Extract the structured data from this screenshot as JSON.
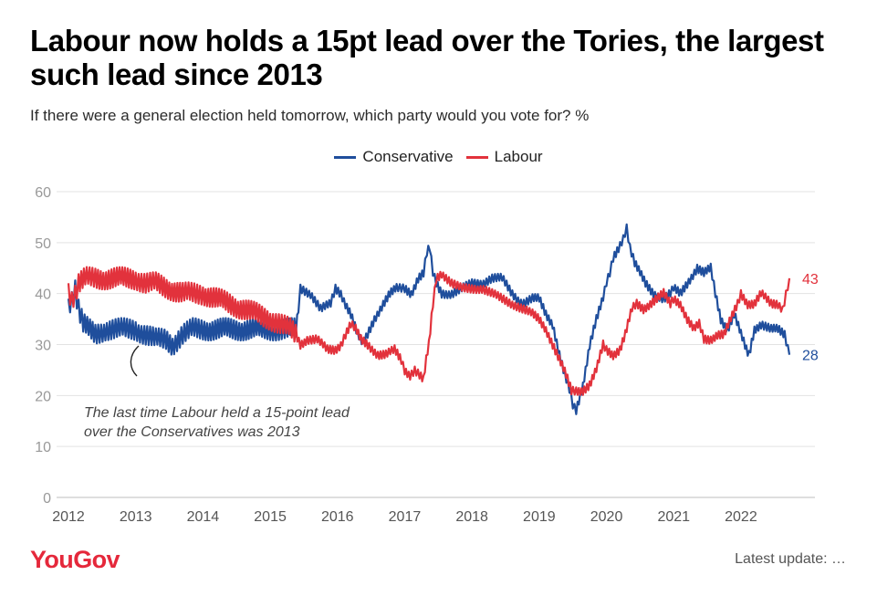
{
  "header": {
    "title": "Labour now holds a 15pt lead over the Tories, the largest such lead since 2013",
    "subtitle": "If there were a general election held tomorrow, which party would you vote for? %"
  },
  "legend": {
    "conservative_label": "Conservative",
    "labour_label": "Labour"
  },
  "colors": {
    "conservative": "#1f4e9c",
    "labour": "#e2323c",
    "grid": "#e3e3e3",
    "tick_text": "#999999"
  },
  "chart_data": {
    "type": "line",
    "title": "Labour now holds a 15pt lead over the Tories, the largest such lead since 2013",
    "subtitle": "If there were a general election held tomorrow, which party would you vote for? %",
    "xlabel": "",
    "ylabel": "",
    "x_ticks": [
      "2012",
      "2013",
      "2014",
      "2015",
      "2016",
      "2017",
      "2018",
      "2019",
      "2020",
      "2021",
      "2022"
    ],
    "y_ticks": [
      "0",
      "10",
      "20",
      "30",
      "40",
      "50",
      "60"
    ],
    "xlim": [
      2012,
      2023.1
    ],
    "ylim": [
      0,
      60
    ],
    "grid": true,
    "legend_position": "top-center",
    "series": [
      {
        "name": "Conservative",
        "color": "#1f4e9c",
        "end_label": "28",
        "points": [
          [
            2012.0,
            38
          ],
          [
            2012.05,
            39
          ],
          [
            2012.1,
            41
          ],
          [
            2012.15,
            37
          ],
          [
            2012.22,
            34
          ],
          [
            2012.3,
            33
          ],
          [
            2012.4,
            32
          ],
          [
            2012.55,
            33
          ],
          [
            2012.7,
            33
          ],
          [
            2012.85,
            33
          ],
          [
            2013.0,
            33
          ],
          [
            2013.15,
            32
          ],
          [
            2013.3,
            31
          ],
          [
            2013.45,
            31
          ],
          [
            2013.55,
            30
          ],
          [
            2013.7,
            32
          ],
          [
            2013.85,
            33
          ],
          [
            2014.0,
            33
          ],
          [
            2014.2,
            33
          ],
          [
            2014.4,
            33
          ],
          [
            2014.6,
            33
          ],
          [
            2014.8,
            33
          ],
          [
            2015.0,
            33
          ],
          [
            2015.15,
            33
          ],
          [
            2015.3,
            33
          ],
          [
            2015.38,
            33
          ],
          [
            2015.42,
            37
          ],
          [
            2015.45,
            41
          ],
          [
            2015.6,
            40
          ],
          [
            2015.75,
            37
          ],
          [
            2015.9,
            38
          ],
          [
            2015.97,
            41
          ],
          [
            2016.05,
            40
          ],
          [
            2016.12,
            38
          ],
          [
            2016.2,
            36
          ],
          [
            2016.3,
            32
          ],
          [
            2016.38,
            30
          ],
          [
            2016.45,
            32
          ],
          [
            2016.55,
            35
          ],
          [
            2016.68,
            38
          ],
          [
            2016.78,
            40
          ],
          [
            2016.88,
            41
          ],
          [
            2016.95,
            41
          ],
          [
            2017.0,
            41
          ],
          [
            2017.1,
            40
          ],
          [
            2017.2,
            43
          ],
          [
            2017.28,
            44
          ],
          [
            2017.33,
            48
          ],
          [
            2017.37,
            49
          ],
          [
            2017.42,
            44
          ],
          [
            2017.47,
            42
          ],
          [
            2017.55,
            40
          ],
          [
            2017.7,
            40
          ],
          [
            2017.85,
            41
          ],
          [
            2018.0,
            42
          ],
          [
            2018.15,
            42
          ],
          [
            2018.3,
            43
          ],
          [
            2018.45,
            43
          ],
          [
            2018.6,
            40
          ],
          [
            2018.75,
            38
          ],
          [
            2018.9,
            39
          ],
          [
            2019.0,
            39
          ],
          [
            2019.1,
            36
          ],
          [
            2019.2,
            34
          ],
          [
            2019.3,
            28
          ],
          [
            2019.38,
            24
          ],
          [
            2019.45,
            21
          ],
          [
            2019.5,
            18
          ],
          [
            2019.55,
            17
          ],
          [
            2019.65,
            22
          ],
          [
            2019.75,
            30
          ],
          [
            2019.85,
            35
          ],
          [
            2019.95,
            39
          ],
          [
            2020.0,
            42
          ],
          [
            2020.05,
            44
          ],
          [
            2020.1,
            47
          ],
          [
            2020.18,
            49
          ],
          [
            2020.25,
            51
          ],
          [
            2020.3,
            53
          ],
          [
            2020.35,
            49
          ],
          [
            2020.42,
            46
          ],
          [
            2020.5,
            44
          ],
          [
            2020.58,
            42
          ],
          [
            2020.7,
            40
          ],
          [
            2020.85,
            39
          ],
          [
            2020.95,
            40
          ],
          [
            2021.0,
            41
          ],
          [
            2021.1,
            40
          ],
          [
            2021.2,
            42
          ],
          [
            2021.35,
            45
          ],
          [
            2021.45,
            44
          ],
          [
            2021.55,
            45
          ],
          [
            2021.62,
            40
          ],
          [
            2021.7,
            35
          ],
          [
            2021.8,
            33
          ],
          [
            2021.9,
            36
          ],
          [
            2022.0,
            32
          ],
          [
            2022.08,
            29
          ],
          [
            2022.12,
            28
          ],
          [
            2022.2,
            33
          ],
          [
            2022.3,
            34
          ],
          [
            2022.45,
            33
          ],
          [
            2022.55,
            33
          ],
          [
            2022.65,
            32
          ],
          [
            2022.72,
            28
          ]
        ]
      },
      {
        "name": "Labour",
        "color": "#e2323c",
        "end_label": "43",
        "points": [
          [
            2012.0,
            41
          ],
          [
            2012.05,
            39
          ],
          [
            2012.1,
            40
          ],
          [
            2012.15,
            42
          ],
          [
            2012.25,
            43
          ],
          [
            2012.4,
            43
          ],
          [
            2012.6,
            43
          ],
          [
            2012.8,
            43
          ],
          [
            2013.0,
            43
          ],
          [
            2013.15,
            42
          ],
          [
            2013.3,
            42
          ],
          [
            2013.5,
            41
          ],
          [
            2013.7,
            40
          ],
          [
            2013.85,
            40
          ],
          [
            2014.0,
            40
          ],
          [
            2014.2,
            39
          ],
          [
            2014.4,
            38
          ],
          [
            2014.6,
            37
          ],
          [
            2014.8,
            36
          ],
          [
            2015.0,
            35
          ],
          [
            2015.15,
            34
          ],
          [
            2015.3,
            33
          ],
          [
            2015.38,
            32
          ],
          [
            2015.45,
            30
          ],
          [
            2015.55,
            31
          ],
          [
            2015.7,
            31
          ],
          [
            2015.85,
            29
          ],
          [
            2015.97,
            29
          ],
          [
            2016.05,
            30
          ],
          [
            2016.12,
            32
          ],
          [
            2016.2,
            34
          ],
          [
            2016.27,
            33
          ],
          [
            2016.35,
            31
          ],
          [
            2016.45,
            30
          ],
          [
            2016.6,
            28
          ],
          [
            2016.72,
            28
          ],
          [
            2016.85,
            29
          ],
          [
            2016.95,
            27
          ],
          [
            2017.0,
            25
          ],
          [
            2017.08,
            24
          ],
          [
            2017.15,
            25
          ],
          [
            2017.22,
            24
          ],
          [
            2017.28,
            23
          ],
          [
            2017.32,
            27
          ],
          [
            2017.36,
            30
          ],
          [
            2017.42,
            38
          ],
          [
            2017.47,
            43
          ],
          [
            2017.55,
            44
          ],
          [
            2017.7,
            42
          ],
          [
            2017.85,
            41
          ],
          [
            2018.0,
            41
          ],
          [
            2018.15,
            41
          ],
          [
            2018.3,
            40
          ],
          [
            2018.45,
            39
          ],
          [
            2018.6,
            38
          ],
          [
            2018.75,
            37
          ],
          [
            2018.9,
            36
          ],
          [
            2019.0,
            35
          ],
          [
            2019.1,
            33
          ],
          [
            2019.2,
            30
          ],
          [
            2019.3,
            27
          ],
          [
            2019.4,
            24
          ],
          [
            2019.48,
            21
          ],
          [
            2019.55,
            21
          ],
          [
            2019.65,
            21
          ],
          [
            2019.75,
            22
          ],
          [
            2019.85,
            25
          ],
          [
            2019.95,
            30
          ],
          [
            2020.0,
            29
          ],
          [
            2020.1,
            28
          ],
          [
            2020.2,
            29
          ],
          [
            2020.28,
            32
          ],
          [
            2020.38,
            37
          ],
          [
            2020.45,
            38
          ],
          [
            2020.55,
            37
          ],
          [
            2020.65,
            38
          ],
          [
            2020.75,
            39
          ],
          [
            2020.85,
            40
          ],
          [
            2020.95,
            38
          ],
          [
            2021.0,
            39
          ],
          [
            2021.1,
            38
          ],
          [
            2021.2,
            35
          ],
          [
            2021.3,
            33
          ],
          [
            2021.38,
            34
          ],
          [
            2021.45,
            31
          ],
          [
            2021.55,
            31
          ],
          [
            2021.65,
            32
          ],
          [
            2021.75,
            32
          ],
          [
            2021.85,
            35
          ],
          [
            2021.95,
            38
          ],
          [
            2022.0,
            40
          ],
          [
            2022.1,
            38
          ],
          [
            2022.2,
            38
          ],
          [
            2022.3,
            40
          ],
          [
            2022.45,
            38
          ],
          [
            2022.55,
            38
          ],
          [
            2022.62,
            37
          ],
          [
            2022.67,
            40
          ],
          [
            2022.72,
            43
          ]
        ]
      }
    ],
    "annotations": [
      {
        "text_line1": "The last time Labour held a 15-point lead",
        "text_line2": "over the Conservatives was 2013"
      }
    ]
  },
  "footer": {
    "brand": "YouGov",
    "updated_text": "Latest update: …"
  }
}
